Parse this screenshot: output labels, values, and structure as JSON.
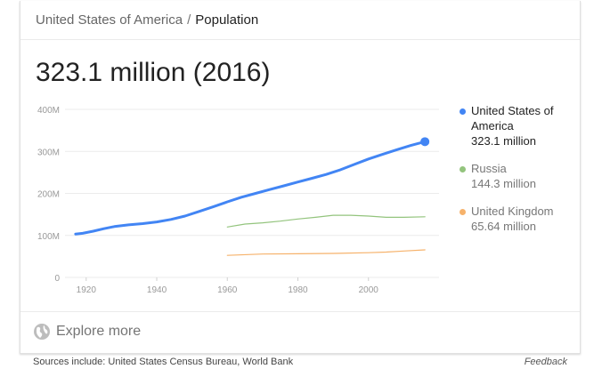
{
  "breadcrumb": {
    "country": "United States of America",
    "separator": "/",
    "topic": "Population"
  },
  "headline_value": "323.1 million (2016)",
  "legend": [
    {
      "name": "United States of America",
      "value": "323.1 million",
      "color": "#4285f4"
    },
    {
      "name": "Russia",
      "value": "144.3 million",
      "color": "#93c47d"
    },
    {
      "name": "United Kingdom",
      "value": "65.64 million",
      "color": "#f6b26b"
    }
  ],
  "explore_label": "Explore more",
  "sources_text": "Sources include: United States Census Bureau, World Bank",
  "feedback_label": "Feedback",
  "chart_data": {
    "type": "line",
    "title": "",
    "xlabel": "",
    "ylabel": "",
    "xlim": [
      1914,
      2020
    ],
    "ylim": [
      0,
      400
    ],
    "x_ticks": [
      1920,
      1940,
      1960,
      1980,
      2000
    ],
    "y_ticks": [
      {
        "value": 0,
        "label": "0"
      },
      {
        "value": 100,
        "label": "100M"
      },
      {
        "value": 200,
        "label": "200M"
      },
      {
        "value": 300,
        "label": "300M"
      },
      {
        "value": 400,
        "label": "400M"
      }
    ],
    "grid": true,
    "legend_position": "right",
    "series": [
      {
        "name": "United States of America",
        "color": "#4285f4",
        "x": [
          1917,
          1919,
          1922,
          1925,
          1928,
          1932,
          1936,
          1940,
          1944,
          1948,
          1952,
          1956,
          1960,
          1964,
          1968,
          1972,
          1976,
          1980,
          1984,
          1988,
          1992,
          1996,
          2000,
          2004,
          2008,
          2012,
          2016
        ],
        "y": [
          103,
          105,
          110,
          116,
          121,
          125,
          128,
          132,
          138,
          146,
          157,
          168,
          180,
          191,
          200,
          209,
          218,
          227,
          236,
          245,
          256,
          269,
          282,
          293,
          304,
          314,
          323.1
        ]
      },
      {
        "name": "Russia",
        "color": "#93c47d",
        "x": [
          1960,
          1965,
          1970,
          1975,
          1980,
          1985,
          1990,
          1995,
          2000,
          2005,
          2010,
          2016
        ],
        "y": [
          120,
          127,
          130,
          134,
          139,
          143,
          148,
          148,
          146,
          143,
          143,
          144.3
        ]
      },
      {
        "name": "United Kingdom",
        "color": "#f6b26b",
        "x": [
          1960,
          1970,
          1980,
          1990,
          2000,
          2005,
          2010,
          2016
        ],
        "y": [
          52.4,
          55.7,
          56.3,
          57.2,
          58.9,
          60.4,
          62.8,
          65.64
        ]
      }
    ]
  }
}
